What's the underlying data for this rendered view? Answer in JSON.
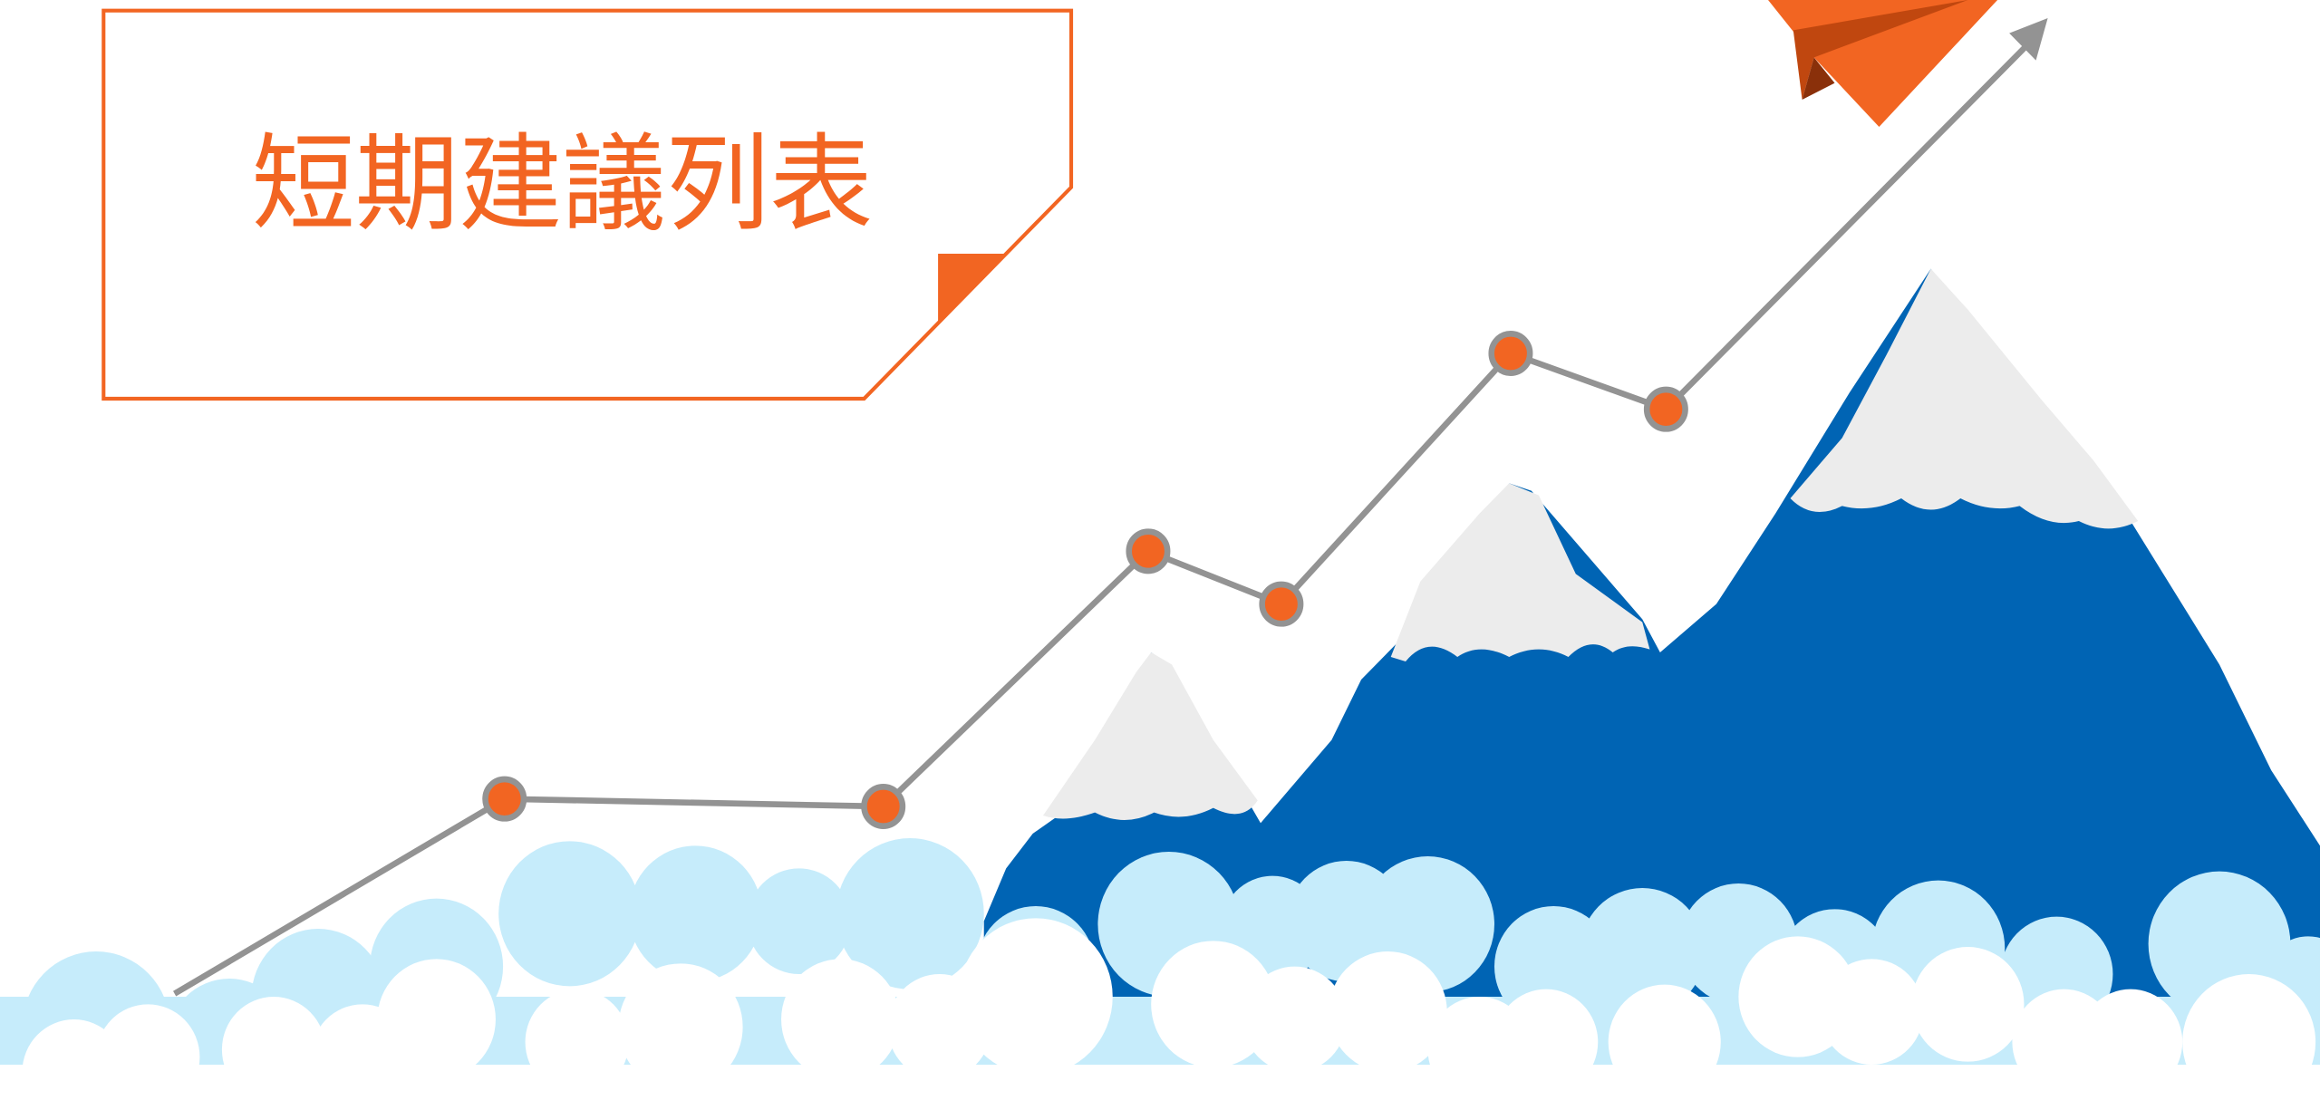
{
  "title": "短期建議列表"
}
